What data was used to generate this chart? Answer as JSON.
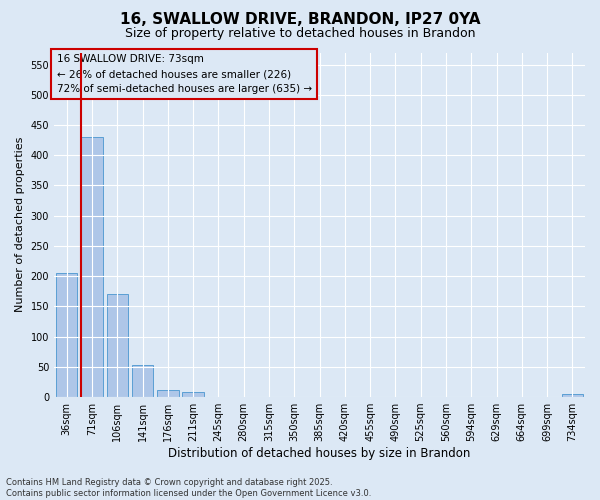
{
  "title1": "16, SWALLOW DRIVE, BRANDON, IP27 0YA",
  "title2": "Size of property relative to detached houses in Brandon",
  "xlabel": "Distribution of detached houses by size in Brandon",
  "ylabel": "Number of detached properties",
  "categories": [
    "36sqm",
    "71sqm",
    "106sqm",
    "141sqm",
    "176sqm",
    "211sqm",
    "245sqm",
    "280sqm",
    "315sqm",
    "350sqm",
    "385sqm",
    "420sqm",
    "455sqm",
    "490sqm",
    "525sqm",
    "560sqm",
    "594sqm",
    "629sqm",
    "664sqm",
    "699sqm",
    "734sqm"
  ],
  "values": [
    205,
    430,
    170,
    53,
    12,
    8,
    0,
    0,
    0,
    0,
    0,
    0,
    0,
    0,
    0,
    0,
    0,
    0,
    0,
    0,
    5
  ],
  "bar_color": "#aec6e8",
  "bar_edge_color": "#5a9fd4",
  "vline_x_index": 1,
  "vline_color": "#cc0000",
  "annotation_text": "16 SWALLOW DRIVE: 73sqm\n← 26% of detached houses are smaller (226)\n72% of semi-detached houses are larger (635) →",
  "annotation_box_color": "#cc0000",
  "ylim": [
    0,
    570
  ],
  "yticks": [
    0,
    50,
    100,
    150,
    200,
    250,
    300,
    350,
    400,
    450,
    500,
    550
  ],
  "background_color": "#dce8f5",
  "grid_color": "#ffffff",
  "footnote": "Contains HM Land Registry data © Crown copyright and database right 2025.\nContains public sector information licensed under the Open Government Licence v3.0.",
  "title1_fontsize": 11,
  "title2_fontsize": 9,
  "xlabel_fontsize": 8.5,
  "ylabel_fontsize": 8,
  "tick_fontsize": 7,
  "annot_fontsize": 7.5,
  "footnote_fontsize": 6
}
